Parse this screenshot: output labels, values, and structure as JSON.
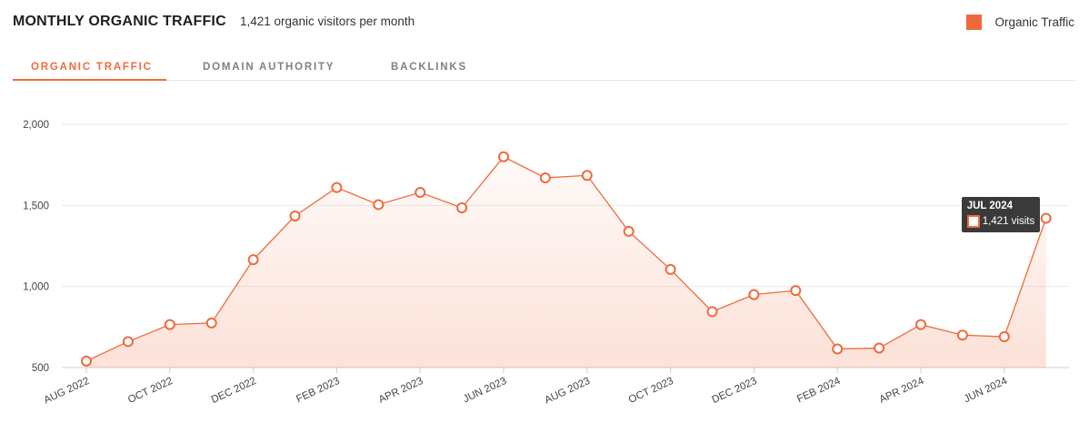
{
  "header": {
    "title": "MONTHLY ORGANIC TRAFFIC",
    "subtitle": "1,421 organic visitors per month"
  },
  "legend": {
    "label": "Organic Traffic"
  },
  "colors": {
    "accent": "#ef6a3a",
    "fill": "#fde6dc",
    "grid": "#e9e9e9"
  },
  "tabs": [
    {
      "label": "ORGANIC TRAFFIC",
      "active": true
    },
    {
      "label": "DOMAIN AUTHORITY",
      "active": false
    },
    {
      "label": "BACKLINKS",
      "active": false
    }
  ],
  "tooltip": {
    "title": "JUL 2024",
    "value": "1,421 visits"
  },
  "chart_data": {
    "type": "area",
    "series": [
      {
        "name": "Organic Traffic",
        "values": [
          540,
          660,
          765,
          775,
          1165,
          1435,
          1610,
          1505,
          1580,
          1485,
          1800,
          1670,
          1685,
          1340,
          1105,
          845,
          950,
          975,
          615,
          620,
          765,
          700,
          690,
          1421
        ]
      }
    ],
    "x": [
      "AUG 2022",
      "SEP 2022",
      "OCT 2022",
      "NOV 2022",
      "DEC 2022",
      "JAN 2023",
      "FEB 2023",
      "MAR 2023",
      "APR 2023",
      "MAY 2023",
      "JUN 2023",
      "JUL 2023",
      "AUG 2023",
      "SEP 2023",
      "OCT 2023",
      "NOV 2023",
      "DEC 2023",
      "JAN 2024",
      "FEB 2024",
      "MAR 2024",
      "APR 2024",
      "MAY 2024",
      "JUN 2024",
      "JUL 2024"
    ],
    "x_tick_labels": [
      "AUG 2022",
      "OCT 2022",
      "DEC 2022",
      "FEB 2023",
      "APR 2023",
      "JUN 2023",
      "AUG 2023",
      "OCT 2023",
      "DEC 2023",
      "FEB 2024",
      "APR 2024",
      "JUN 2024"
    ],
    "y_ticks": [
      500,
      1000,
      1500,
      2000
    ],
    "y_tick_labels": [
      "500",
      "1,000",
      "1,500",
      "2,000"
    ],
    "ylim": [
      500,
      2000
    ],
    "grid": true,
    "legend": "top-right"
  }
}
